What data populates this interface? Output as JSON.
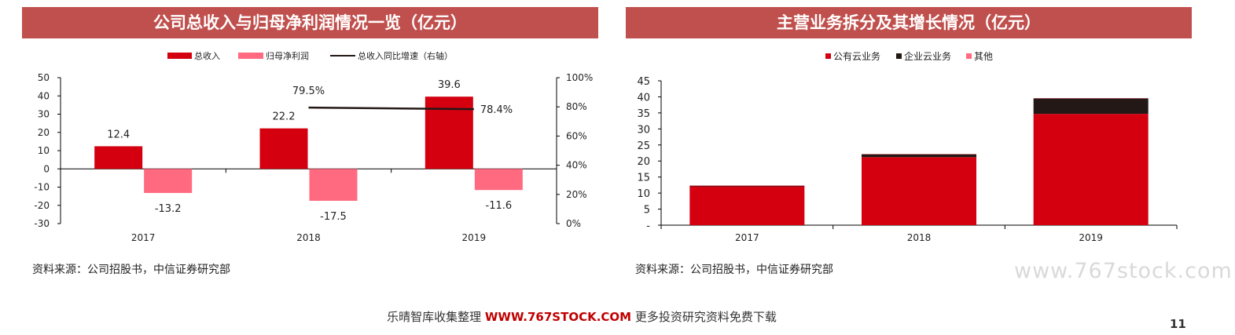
{
  "titles": {
    "left": "公司总收入与归母净利润情况一览（亿元）",
    "right": "主营业务拆分及其增长情况（亿元）"
  },
  "sources": {
    "left": "资料来源：公司招股书，中信证券研究部",
    "right": "资料来源：公司招股书，中信证券研究部"
  },
  "watermark": "www.767stock.com",
  "footer": {
    "prefix": "乐晴智库收集整理",
    "brand": "WWW.767STOCK.COM",
    "suffix": "更多投资研究资料免费下载"
  },
  "page_number": "11",
  "colors": {
    "header_bg": "#c0504d",
    "dark_red": "#d40010",
    "pink": "#ff6a80",
    "near_black": "#231815",
    "black": "#000000"
  },
  "chart_data": [
    {
      "type": "bar",
      "title": "公司总收入与归母净利润情况一览（亿元）",
      "categories": [
        "2017",
        "2018",
        "2019"
      ],
      "ylim": [
        -30,
        50
      ],
      "yticks": [
        "-30",
        "-20",
        "-10",
        "0",
        "10",
        "20",
        "30",
        "40",
        "50"
      ],
      "y2lim": [
        0,
        100
      ],
      "y2ticks": [
        "0%",
        "20%",
        "40%",
        "60%",
        "80%",
        "100%"
      ],
      "legend_position": "top-center",
      "grid": false,
      "series": [
        {
          "name": "总收入",
          "type": "bar",
          "values": [
            12.4,
            22.2,
            39.6
          ],
          "labels": [
            "12.4",
            "22.2",
            "39.6"
          ]
        },
        {
          "name": "归母净利润",
          "type": "bar",
          "values": [
            -13.2,
            -17.5,
            -11.6
          ],
          "labels": [
            "-13.2",
            "-17.5",
            "-11.6"
          ]
        },
        {
          "name": "总收入同比增速（右轴）",
          "type": "line",
          "axis": "right",
          "values": [
            null,
            79.5,
            78.4
          ],
          "labels": [
            "",
            "79.5%",
            "78.4%"
          ]
        }
      ]
    },
    {
      "type": "bar",
      "stacked": true,
      "title": "主营业务拆分及其增长情况（亿元）",
      "categories": [
        "2017",
        "2018",
        "2019"
      ],
      "ylim": [
        0,
        45
      ],
      "yticks": [
        "-",
        "5",
        "10",
        "15",
        "20",
        "25",
        "30",
        "35",
        "40",
        "45"
      ],
      "legend_position": "top-center",
      "grid": false,
      "series": [
        {
          "name": "公有云业务",
          "values": [
            12.1,
            21.2,
            34.7
          ]
        },
        {
          "name": "企业云业务",
          "values": [
            0.2,
            0.9,
            4.8
          ]
        },
        {
          "name": "其他",
          "values": [
            0.1,
            0.1,
            0.1
          ]
        }
      ]
    }
  ]
}
